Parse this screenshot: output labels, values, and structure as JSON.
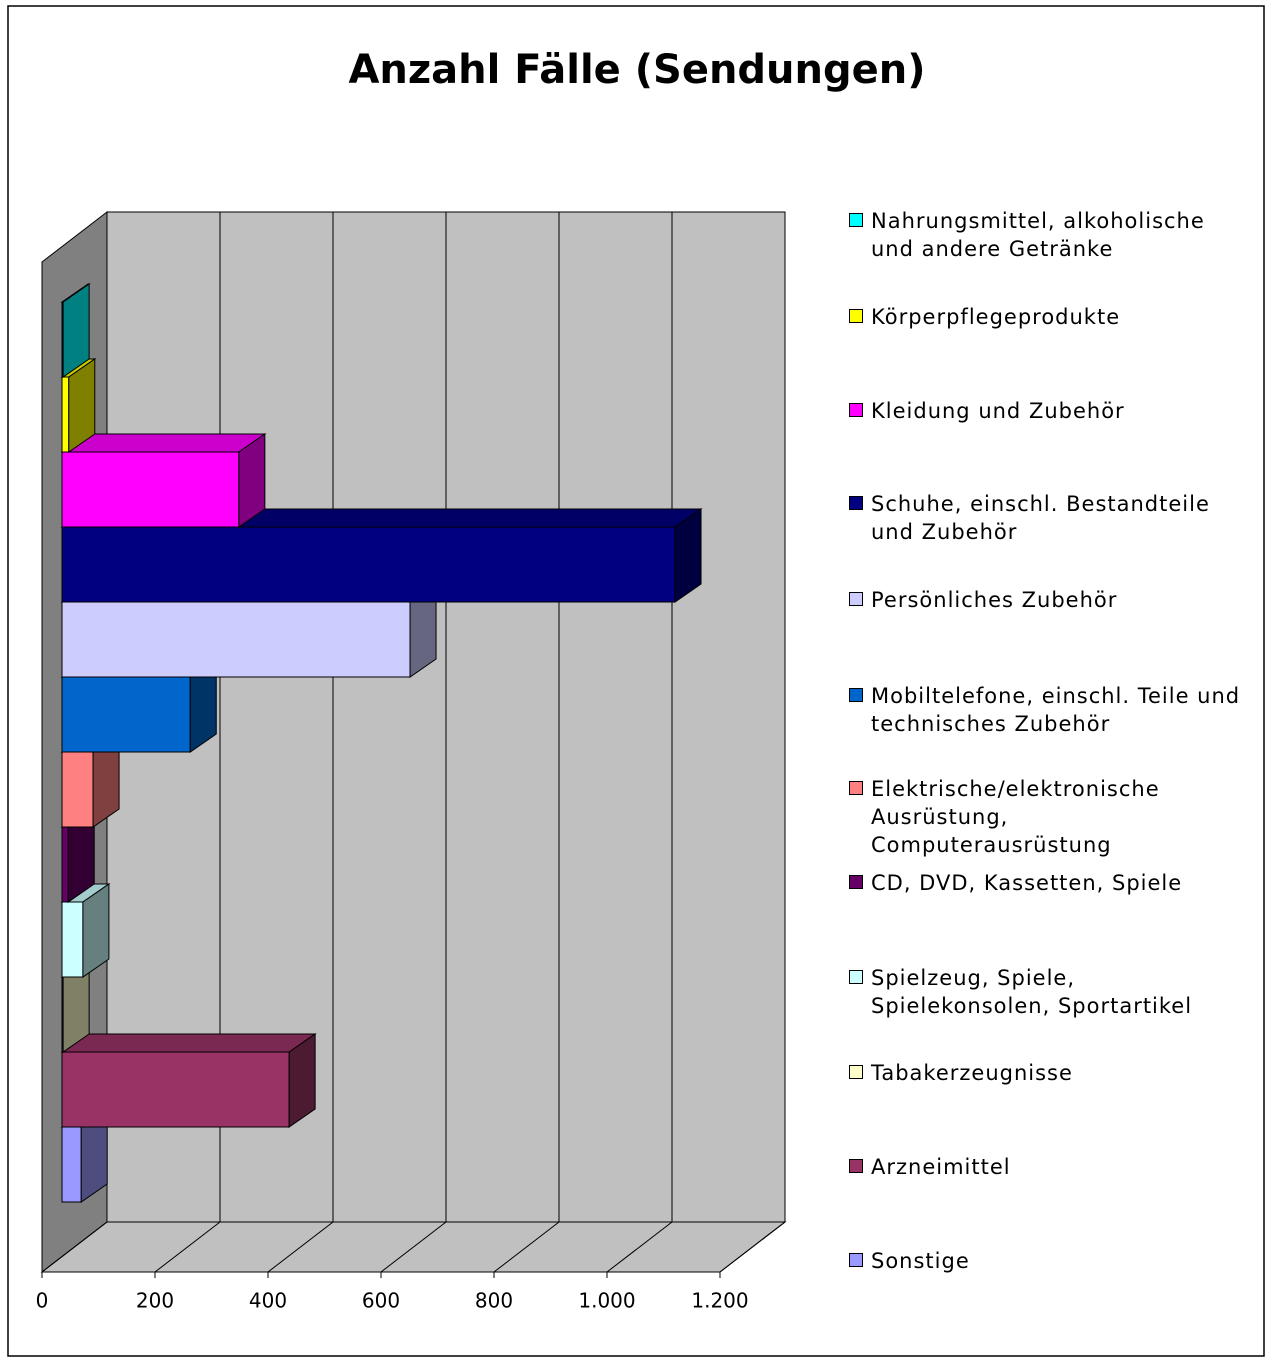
{
  "chart_data": {
    "type": "bar3d_horizontal",
    "title": "Anzahl Fälle (Sendungen)",
    "categories": [
      "Nahrungsmittel, alkoholische und andere Getränke",
      "Körperpflegeprodukte",
      "Kleidung und Zubehör",
      "Schuhe, einschl. Bestandteile und Zubehör",
      "Persönliches Zubehör",
      "Mobiltelefone, einschl. Teile und technisches Zubehör",
      "Elektrische/elektronische Ausrüstung, Computerausrüstung",
      "CD, DVD, Kassetten, Spiele",
      "Spielzeug, Spiele, Spielekonsolen, Sportartikel",
      "Tabakerzeugnisse",
      "Arzneimittel",
      "Sonstige"
    ],
    "values": [
      2,
      12,
      313,
      1085,
      616,
      227,
      55,
      11,
      37,
      2,
      402,
      34
    ],
    "colors": [
      "#00ffff",
      "#ffff00",
      "#ff00ff",
      "#000080",
      "#ccccff",
      "#0066cc",
      "#ff8080",
      "#660066",
      "#ccffff",
      "#ffffcc",
      "#993366",
      "#9999ff"
    ],
    "xlim": [
      0,
      1200
    ],
    "xticks": [
      0,
      200,
      400,
      600,
      800,
      {
        "value": 1000,
        "label": "1.000"
      },
      {
        "value": 1200,
        "label": "1.200"
      }
    ],
    "grid": true
  }
}
